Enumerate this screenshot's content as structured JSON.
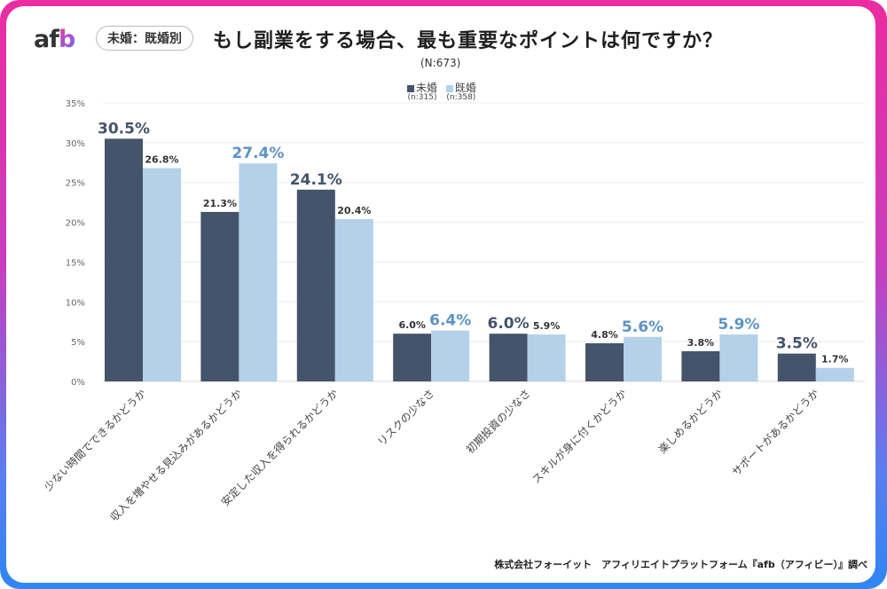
{
  "header": {
    "logo": {
      "text_main": "af",
      "text_accent": "b"
    },
    "tag": "未婚：既婚別",
    "title": "もし副業をする場合、最も重要なポイントは何ですか？",
    "subtitle": "(N:673)"
  },
  "footer": "株式会社フォーイット　アフィリエイトプラットフォーム『afb（アフィビー）』調べ",
  "colors": {
    "series_single": "#44546a",
    "series_married": "#b4d1ea",
    "highlight_single_label": "#44546a",
    "highlight_married_label": "#5b93c7",
    "border_top": "#ec2ba0",
    "border_bottom": "#2f86f2"
  },
  "chart_data": {
    "type": "bar",
    "title": "もし副業をする場合、最も重要なポイントは何ですか？",
    "subtitle": "(N:673)",
    "xlabel": "",
    "ylabel": "",
    "ylim": [
      0,
      35
    ],
    "yticks": [
      0,
      5,
      10,
      15,
      20,
      25,
      30,
      35
    ],
    "ytick_labels": [
      "0%",
      "5%",
      "10%",
      "15%",
      "20%",
      "25%",
      "30%",
      "35%"
    ],
    "grid": true,
    "legend_position": "top-center",
    "categories": [
      "少ない時間でできるかどうか",
      "収入を増やせる見込みがあるかどうか",
      "安定した収入を得られるかどうか",
      "リスクの少なさ",
      "初期投資の少なさ",
      "スキルが身に付くかどうか",
      "楽しめるかどうか",
      "サポートがあるかどうか"
    ],
    "series": [
      {
        "name": "未婚",
        "n_label": "(n:315)",
        "values": [
          30.5,
          21.3,
          24.1,
          6.0,
          6.0,
          4.8,
          3.8,
          3.5
        ],
        "labels": [
          "30.5%",
          "21.3%",
          "24.1%",
          "6.0%",
          "6.0%",
          "4.8%",
          "3.8%",
          "3.5%"
        ]
      },
      {
        "name": "既婚",
        "n_label": "(n:358)",
        "values": [
          26.8,
          27.4,
          20.4,
          6.4,
          5.9,
          5.6,
          5.9,
          1.7
        ],
        "labels": [
          "26.8%",
          "27.4%",
          "20.4%",
          "6.4%",
          "5.9%",
          "5.6%",
          "5.9%",
          "1.7%"
        ]
      }
    ]
  }
}
